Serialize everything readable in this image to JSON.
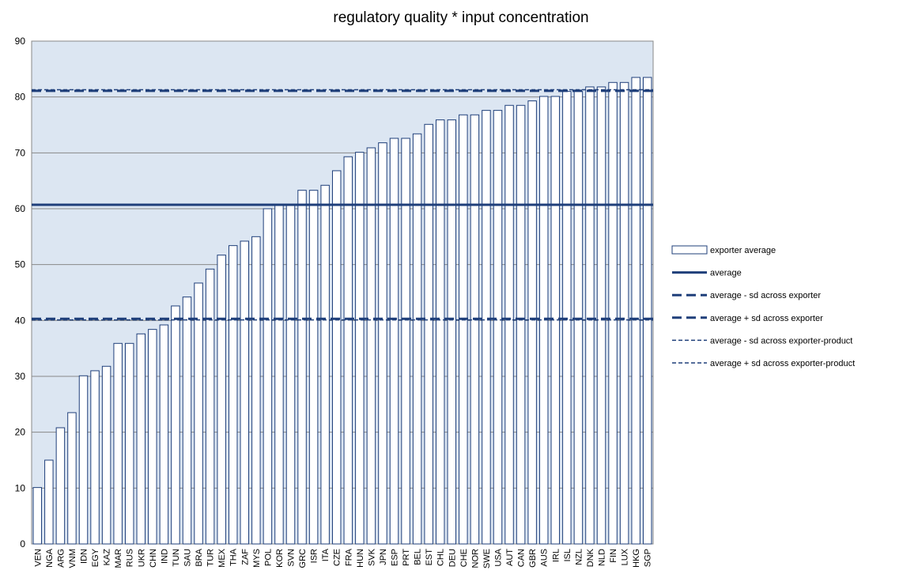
{
  "chart_data": {
    "type": "bar",
    "title": "regulatory quality * input concentration",
    "categories": [
      "VEN",
      "NGA",
      "ARG",
      "VNM",
      "IDN",
      "EGY",
      "KAZ",
      "MAR",
      "RUS",
      "UKR",
      "CHN",
      "IND",
      "TUN",
      "SAU",
      "BRA",
      "TUR",
      "MEX",
      "THA",
      "ZAF",
      "MYS",
      "POL",
      "KOR",
      "SVN",
      "GRC",
      "ISR",
      "ITA",
      "CZE",
      "FRA",
      "HUN",
      "SVK",
      "JPN",
      "ESP",
      "PRT",
      "BEL",
      "EST",
      "CHL",
      "DEU",
      "CHE",
      "NOR",
      "SWE",
      "USA",
      "AUT",
      "CAN",
      "GBR",
      "AUS",
      "IRL",
      "ISL",
      "NZL",
      "DNK",
      "NLD",
      "FIN",
      "LUX",
      "HKG",
      "SGP"
    ],
    "series": [
      {
        "name": "exporter average",
        "color": "#1f3f7a",
        "values": [
          10.1,
          15,
          20.8,
          23.5,
          30.1,
          31,
          31.8,
          35.9,
          35.9,
          37.6,
          38.4,
          39.2,
          42.6,
          44.2,
          46.7,
          49.2,
          51.7,
          53.4,
          54.2,
          55,
          60,
          60.8,
          60.8,
          63.3,
          63.3,
          64.2,
          66.8,
          69.3,
          70.1,
          70.9,
          71.8,
          72.6,
          72.6,
          73.4,
          75.1,
          75.9,
          75.9,
          76.8,
          76.8,
          77.6,
          77.6,
          78.5,
          78.5,
          79.3,
          80.1,
          80.1,
          81,
          81,
          81.8,
          81.8,
          82.6,
          82.6,
          83.5,
          83.5
        ]
      }
    ],
    "reference_lines": [
      {
        "name": "average",
        "value": 60.7,
        "style": "solid",
        "color": "#1f3f7a"
      },
      {
        "name": "average - sd across exporter",
        "value": 40.3,
        "style": "long-dash",
        "color": "#1f3f7a"
      },
      {
        "name": "average + sd across exporter",
        "value": 81.1,
        "style": "long-dash",
        "color": "#1f3f7a"
      },
      {
        "name": "average - sd across exporter-product",
        "value": 40.1,
        "style": "short-dash",
        "color": "#1f3f7a"
      },
      {
        "name": "average + sd across exporter-product",
        "value": 81.3,
        "style": "short-dash",
        "color": "#1f3f7a"
      }
    ],
    "ylim": [
      0,
      90
    ],
    "yticks": [
      0,
      10,
      20,
      30,
      40,
      50,
      60,
      70,
      80,
      90
    ],
    "grid": true,
    "plot_background": "#dce6f2",
    "legend": "right"
  }
}
